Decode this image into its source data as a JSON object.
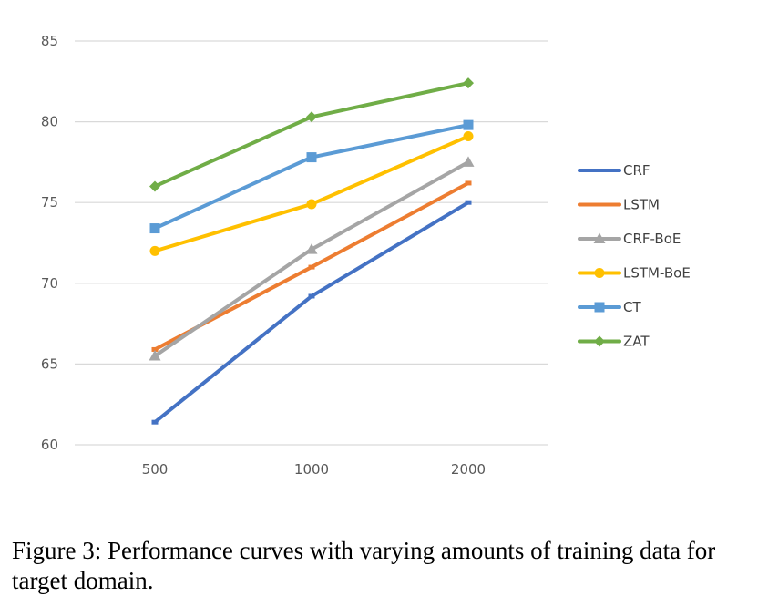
{
  "chart_data": {
    "type": "line",
    "categories": [
      "500",
      "1000",
      "2000"
    ],
    "ylim": [
      60,
      85
    ],
    "yticks": [
      60,
      65,
      70,
      75,
      80,
      85
    ],
    "grid": true,
    "legend": "right",
    "series": [
      {
        "name": "CRF",
        "color": "#4472C4",
        "marker": "dash",
        "values": [
          61.4,
          69.2,
          75.0
        ]
      },
      {
        "name": "LSTM",
        "color": "#ED7D31",
        "marker": "dash",
        "values": [
          65.9,
          71.0,
          76.2
        ]
      },
      {
        "name": "CRF-BoE",
        "color": "#A5A5A5",
        "marker": "triangle",
        "values": [
          65.5,
          72.1,
          77.5
        ]
      },
      {
        "name": "LSTM-BoE",
        "color": "#FFC000",
        "marker": "circle",
        "values": [
          72.0,
          74.9,
          79.1
        ]
      },
      {
        "name": "CT",
        "color": "#5B9BD5",
        "marker": "square",
        "values": [
          73.4,
          77.8,
          79.8
        ]
      },
      {
        "name": "ZAT",
        "color": "#70AD47",
        "marker": "diamond",
        "values": [
          76.0,
          80.3,
          82.4
        ]
      }
    ]
  },
  "caption": "Figure 3: Performance curves with varying amounts of training data for target domain."
}
